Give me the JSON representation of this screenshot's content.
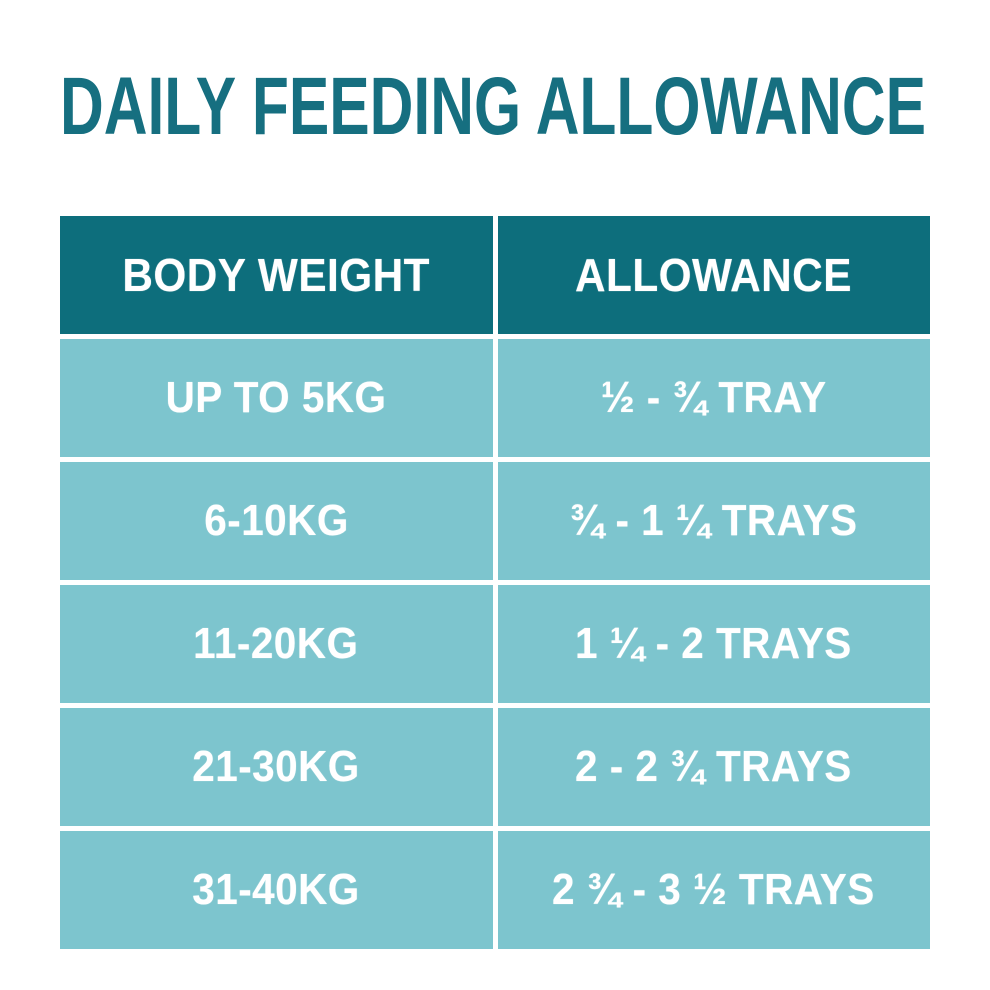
{
  "title": "DAILY FEEDING ALLOWANCE",
  "colors": {
    "header_bg": "#0d6e7c",
    "row_bg": "#7dc5ce",
    "title_color": "#166f80",
    "cell_text": "#ffffff",
    "page_bg": "#ffffff"
  },
  "chart_data": {
    "type": "table",
    "title": "DAILY FEEDING ALLOWANCE",
    "columns": [
      "BODY WEIGHT",
      "ALLOWANCE"
    ],
    "rows": [
      [
        "UP TO 5KG",
        "½ - ¾ TRAY"
      ],
      [
        "6-10KG",
        "¾ - 1 ¼ TRAYS"
      ],
      [
        "11-20KG",
        "1 ¼ - 2 TRAYS"
      ],
      [
        "21-30KG",
        "2 - 2 ¾ TRAYS"
      ],
      [
        "31-40KG",
        "2 ¾ - 3 ½ TRAYS"
      ]
    ],
    "layout": {
      "grid": "white gaps between cells",
      "header_style": "dark teal background, white bold text",
      "row_style": "light teal background, white bold text"
    }
  }
}
